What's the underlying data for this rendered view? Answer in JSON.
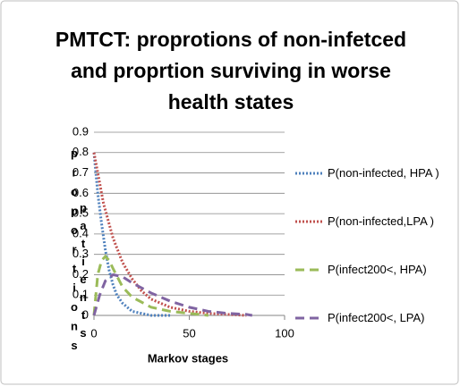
{
  "chart_data": {
    "type": "line",
    "title": [
      "PMTCT: proprotions of non-infetced",
      "and proprtion surviving in worse",
      "health states"
    ],
    "xlabel": "Markov stages",
    "ylabel": [
      "proportions",
      "patients"
    ],
    "xlim": [
      0,
      100
    ],
    "xticks": [
      0,
      50,
      100
    ],
    "ylim": [
      0,
      0.9
    ],
    "yticks": [
      0,
      0.1,
      0.2,
      0.3,
      0.4,
      0.5,
      0.6,
      0.7,
      0.8,
      0.9
    ],
    "grid": true,
    "legend": "right",
    "series": [
      {
        "name": "P(non-infected, HPA )",
        "color": "#4f81bd",
        "dash": "dotted",
        "x": [
          0,
          2,
          4,
          6,
          8,
          10,
          12,
          15,
          20,
          25,
          30,
          40
        ],
        "values": [
          0.8,
          0.6,
          0.45,
          0.32,
          0.22,
          0.15,
          0.1,
          0.06,
          0.02,
          0.01,
          0,
          0
        ]
      },
      {
        "name": "P(non-infected,LPA )",
        "color": "#c0504d",
        "dash": "dotted",
        "x": [
          0,
          5,
          10,
          15,
          20,
          25,
          30,
          40,
          50,
          60,
          70,
          80
        ],
        "values": [
          0.8,
          0.55,
          0.38,
          0.26,
          0.18,
          0.12,
          0.08,
          0.04,
          0.02,
          0.01,
          0.005,
          0
        ]
      },
      {
        "name": "P(infect200<, HPA)",
        "color": "#9bbb59",
        "dash": "dashed",
        "x": [
          0,
          2,
          4,
          6,
          8,
          10,
          15,
          20,
          30,
          40,
          50,
          60
        ],
        "values": [
          0,
          0.2,
          0.27,
          0.29,
          0.27,
          0.23,
          0.14,
          0.09,
          0.04,
          0.02,
          0.01,
          0
        ]
      },
      {
        "name": "P(infect200<, LPA)",
        "color": "#8064a2",
        "dash": "dashed",
        "x": [
          0,
          3,
          6,
          10,
          15,
          20,
          30,
          40,
          50,
          60,
          70,
          80,
          83
        ],
        "values": [
          0,
          0.1,
          0.17,
          0.2,
          0.19,
          0.16,
          0.11,
          0.07,
          0.04,
          0.02,
          0.01,
          0.005,
          0
        ]
      }
    ]
  }
}
